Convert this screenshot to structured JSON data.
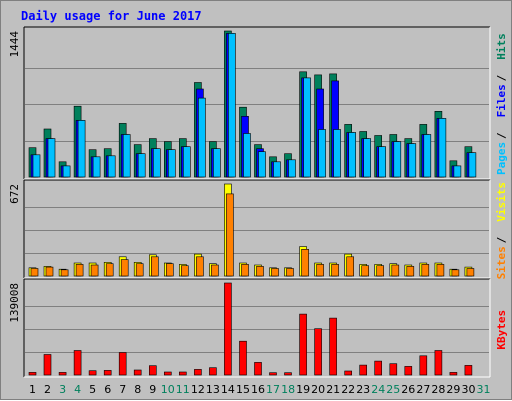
{
  "chart_data": {
    "type": "bar",
    "title": "Daily usage for June 2017",
    "categories": [
      "1",
      "2",
      "3",
      "4",
      "5",
      "6",
      "7",
      "8",
      "9",
      "10",
      "11",
      "12",
      "13",
      "14",
      "15",
      "16",
      "17",
      "18",
      "19",
      "20",
      "21",
      "22",
      "23",
      "24",
      "25",
      "26",
      "27",
      "28",
      "29",
      "30",
      "31"
    ],
    "weekend_days": [
      "3",
      "4",
      "10",
      "11",
      "17",
      "18",
      "24",
      "25",
      "31"
    ],
    "panels": [
      {
        "id": "hits-files-pages",
        "ymax_label": "1444",
        "ymax": 1444,
        "legend": [
          {
            "label": "Pages",
            "color": "#00c0ff"
          },
          {
            "label": "Files",
            "color": "#0000ff"
          },
          {
            "label": "Hits",
            "color": "#00805c"
          }
        ],
        "series": [
          {
            "name": "Hits",
            "color": "#00805c",
            "values": [
              290,
              475,
              150,
              700,
              270,
              280,
              530,
              320,
              380,
              350,
              380,
              935,
              350,
              1444,
              690,
              320,
              200,
              230,
              1040,
              1010,
              1020,
              520,
              450,
              410,
              420,
              380,
              520,
              650,
              160,
              300,
              0
            ]
          },
          {
            "name": "Files",
            "color": "#0000ff",
            "values": [
              220,
              380,
              110,
              560,
              200,
              210,
              420,
              230,
              280,
              270,
              300,
              870,
              280,
              1420,
              600,
              280,
              150,
              170,
              980,
              870,
              950,
              440,
              380,
              300,
              350,
              330,
              420,
              580,
              110,
              240,
              0
            ]
          },
          {
            "name": "Pages",
            "color": "#00c0ff",
            "values": [
              220,
              380,
              110,
              560,
              200,
              210,
              420,
              230,
              280,
              270,
              300,
              780,
              280,
              1420,
              430,
              250,
              150,
              170,
              980,
              470,
              470,
              440,
              380,
              300,
              350,
              330,
              420,
              580,
              110,
              240,
              0
            ]
          }
        ]
      },
      {
        "id": "visits-sites",
        "ymax_label": "672",
        "ymax": 672,
        "legend": [
          {
            "label": "Sites",
            "color": "#ff8000"
          },
          {
            "label": "Visits",
            "color": "#ffff00"
          }
        ],
        "series": [
          {
            "name": "Visits",
            "color": "#ffff00",
            "values": [
              60,
              70,
              50,
              95,
              95,
              100,
              140,
              100,
              155,
              95,
              85,
              160,
              90,
              672,
              95,
              80,
              60,
              60,
              215,
              95,
              95,
              160,
              85,
              85,
              90,
              80,
              95,
              95,
              50,
              65,
              0
            ]
          },
          {
            "name": "Sites",
            "color": "#ff8000",
            "values": [
              55,
              65,
              45,
              85,
              80,
              90,
              120,
              90,
              140,
              90,
              75,
              140,
              80,
              600,
              85,
              70,
              55,
              55,
              195,
              85,
              85,
              140,
              75,
              75,
              80,
              70,
              85,
              85,
              45,
              55,
              0
            ]
          }
        ]
      },
      {
        "id": "kbytes",
        "ymax_label": "139008",
        "ymax": 139008,
        "legend": [
          {
            "label": "KBytes",
            "color": "#ff0000"
          }
        ],
        "series": [
          {
            "name": "KBytes",
            "color": "#ff0000",
            "values": [
              4000,
              31000,
              4000,
              37000,
              6500,
              7000,
              34000,
              7500,
              14000,
              4500,
              4500,
              8500,
              11000,
              139008,
              51000,
              19000,
              3500,
              3500,
              92000,
              70000,
              86000,
              6000,
              15000,
              21000,
              17000,
              13000,
              29000,
              37000,
              4000,
              14500,
              0
            ]
          }
        ]
      }
    ]
  }
}
